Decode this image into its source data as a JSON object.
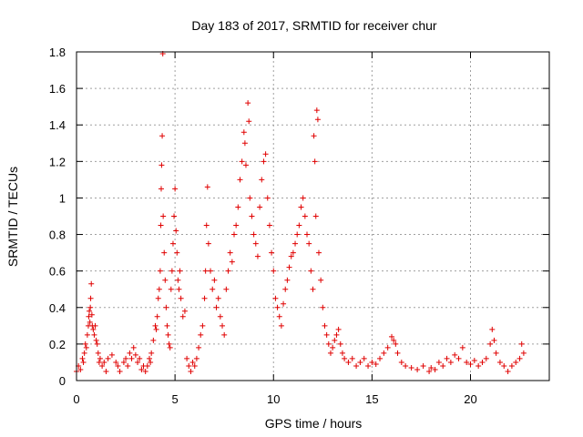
{
  "chart_data": {
    "type": "scatter",
    "title": "Day 183 of 2017, SRMTID for receiver chur",
    "xlabel": "GPS time / hours",
    "ylabel": "SRMTID / TECUs",
    "xlim": [
      0,
      24
    ],
    "ylim": [
      0,
      1.8
    ],
    "xticks": [
      0,
      5,
      10,
      15,
      20
    ],
    "xtick_labels": [
      "0",
      "5",
      "10",
      "15",
      "20"
    ],
    "yticks": [
      0,
      0.2,
      0.4,
      0.6,
      0.8,
      1.0,
      1.2,
      1.4,
      1.6,
      1.8
    ],
    "ytick_labels": [
      "0",
      "0.2",
      "0.4",
      "0.6",
      "0.8",
      "1",
      "1.2",
      "1.4",
      "1.6",
      "1.8"
    ],
    "grid": true,
    "marker": "+",
    "color": "#e00000",
    "series": [
      {
        "name": "SRMTID",
        "points": [
          [
            0.0,
            0.05
          ],
          [
            0.1,
            0.08
          ],
          [
            0.2,
            0.06
          ],
          [
            0.3,
            0.12
          ],
          [
            0.35,
            0.1
          ],
          [
            0.4,
            0.15
          ],
          [
            0.45,
            0.2
          ],
          [
            0.5,
            0.18
          ],
          [
            0.55,
            0.25
          ],
          [
            0.6,
            0.3
          ],
          [
            0.62,
            0.35
          ],
          [
            0.65,
            0.38
          ],
          [
            0.68,
            0.32
          ],
          [
            0.7,
            0.4
          ],
          [
            0.72,
            0.45
          ],
          [
            0.75,
            0.53
          ],
          [
            0.78,
            0.36
          ],
          [
            0.8,
            0.3
          ],
          [
            0.85,
            0.28
          ],
          [
            0.9,
            0.25
          ],
          [
            0.95,
            0.3
          ],
          [
            1.0,
            0.22
          ],
          [
            1.05,
            0.2
          ],
          [
            1.1,
            0.15
          ],
          [
            1.15,
            0.1
          ],
          [
            1.2,
            0.12
          ],
          [
            1.3,
            0.08
          ],
          [
            1.4,
            0.1
          ],
          [
            1.5,
            0.05
          ],
          [
            1.6,
            0.12
          ],
          [
            1.8,
            0.14
          ],
          [
            2.0,
            0.1
          ],
          [
            2.1,
            0.08
          ],
          [
            2.2,
            0.05
          ],
          [
            2.4,
            0.1
          ],
          [
            2.5,
            0.12
          ],
          [
            2.6,
            0.08
          ],
          [
            2.7,
            0.15
          ],
          [
            2.8,
            0.12
          ],
          [
            2.9,
            0.18
          ],
          [
            3.0,
            0.14
          ],
          [
            3.1,
            0.1
          ],
          [
            3.2,
            0.12
          ],
          [
            3.3,
            0.06
          ],
          [
            3.4,
            0.08
          ],
          [
            3.5,
            0.05
          ],
          [
            3.6,
            0.08
          ],
          [
            3.7,
            0.12
          ],
          [
            3.75,
            0.1
          ],
          [
            3.8,
            0.15
          ],
          [
            3.9,
            0.22
          ],
          [
            4.0,
            0.3
          ],
          [
            4.05,
            0.28
          ],
          [
            4.1,
            0.35
          ],
          [
            4.15,
            0.45
          ],
          [
            4.2,
            0.5
          ],
          [
            4.25,
            0.6
          ],
          [
            4.28,
            0.85
          ],
          [
            4.3,
            1.05
          ],
          [
            4.32,
            1.18
          ],
          [
            4.35,
            1.34
          ],
          [
            4.38,
            1.79
          ],
          [
            4.4,
            0.9
          ],
          [
            4.45,
            0.7
          ],
          [
            4.5,
            0.55
          ],
          [
            4.55,
            0.4
          ],
          [
            4.6,
            0.3
          ],
          [
            4.65,
            0.25
          ],
          [
            4.7,
            0.2
          ],
          [
            4.75,
            0.18
          ],
          [
            4.8,
            0.5
          ],
          [
            4.85,
            0.6
          ],
          [
            4.9,
            0.75
          ],
          [
            4.95,
            0.9
          ],
          [
            5.0,
            1.05
          ],
          [
            5.05,
            0.82
          ],
          [
            5.1,
            0.7
          ],
          [
            5.15,
            0.55
          ],
          [
            5.2,
            0.5
          ],
          [
            5.25,
            0.6
          ],
          [
            5.3,
            0.45
          ],
          [
            5.4,
            0.35
          ],
          [
            5.5,
            0.38
          ],
          [
            5.6,
            0.12
          ],
          [
            5.7,
            0.08
          ],
          [
            5.8,
            0.05
          ],
          [
            5.9,
            0.1
          ],
          [
            6.0,
            0.08
          ],
          [
            6.1,
            0.12
          ],
          [
            6.2,
            0.18
          ],
          [
            6.3,
            0.25
          ],
          [
            6.4,
            0.3
          ],
          [
            6.5,
            0.45
          ],
          [
            6.55,
            0.6
          ],
          [
            6.6,
            0.85
          ],
          [
            6.65,
            1.06
          ],
          [
            6.7,
            0.75
          ],
          [
            6.8,
            0.6
          ],
          [
            6.9,
            0.5
          ],
          [
            7.0,
            0.55
          ],
          [
            7.1,
            0.4
          ],
          [
            7.2,
            0.45
          ],
          [
            7.3,
            0.35
          ],
          [
            7.4,
            0.3
          ],
          [
            7.5,
            0.25
          ],
          [
            7.6,
            0.5
          ],
          [
            7.7,
            0.6
          ],
          [
            7.8,
            0.7
          ],
          [
            7.9,
            0.65
          ],
          [
            8.0,
            0.8
          ],
          [
            8.1,
            0.85
          ],
          [
            8.2,
            0.95
          ],
          [
            8.3,
            1.1
          ],
          [
            8.4,
            1.2
          ],
          [
            8.5,
            1.36
          ],
          [
            8.55,
            1.3
          ],
          [
            8.6,
            1.18
          ],
          [
            8.7,
            1.52
          ],
          [
            8.75,
            1.42
          ],
          [
            8.8,
            1.0
          ],
          [
            8.9,
            0.9
          ],
          [
            9.0,
            0.8
          ],
          [
            9.1,
            0.75
          ],
          [
            9.2,
            0.68
          ],
          [
            9.3,
            0.95
          ],
          [
            9.4,
            1.1
          ],
          [
            9.5,
            1.2
          ],
          [
            9.6,
            1.24
          ],
          [
            9.7,
            1.0
          ],
          [
            9.8,
            0.85
          ],
          [
            9.9,
            0.7
          ],
          [
            10.0,
            0.6
          ],
          [
            10.1,
            0.45
          ],
          [
            10.2,
            0.4
          ],
          [
            10.3,
            0.35
          ],
          [
            10.4,
            0.3
          ],
          [
            10.5,
            0.42
          ],
          [
            10.6,
            0.5
          ],
          [
            10.7,
            0.55
          ],
          [
            10.8,
            0.62
          ],
          [
            10.9,
            0.68
          ],
          [
            11.0,
            0.7
          ],
          [
            11.1,
            0.75
          ],
          [
            11.2,
            0.8
          ],
          [
            11.3,
            0.85
          ],
          [
            11.4,
            0.95
          ],
          [
            11.5,
            1.0
          ],
          [
            11.6,
            0.9
          ],
          [
            11.7,
            0.8
          ],
          [
            11.8,
            0.75
          ],
          [
            11.9,
            0.6
          ],
          [
            12.0,
            0.5
          ],
          [
            12.05,
            1.34
          ],
          [
            12.1,
            1.2
          ],
          [
            12.15,
            0.9
          ],
          [
            12.2,
            1.48
          ],
          [
            12.25,
            1.43
          ],
          [
            12.3,
            0.7
          ],
          [
            12.4,
            0.55
          ],
          [
            12.5,
            0.4
          ],
          [
            12.6,
            0.3
          ],
          [
            12.7,
            0.25
          ],
          [
            12.8,
            0.2
          ],
          [
            12.9,
            0.15
          ],
          [
            13.0,
            0.18
          ],
          [
            13.1,
            0.22
          ],
          [
            13.2,
            0.25
          ],
          [
            13.3,
            0.28
          ],
          [
            13.4,
            0.2
          ],
          [
            13.5,
            0.15
          ],
          [
            13.6,
            0.12
          ],
          [
            13.8,
            0.1
          ],
          [
            14.0,
            0.12
          ],
          [
            14.2,
            0.08
          ],
          [
            14.4,
            0.1
          ],
          [
            14.6,
            0.12
          ],
          [
            14.8,
            0.08
          ],
          [
            15.0,
            0.1
          ],
          [
            15.2,
            0.09
          ],
          [
            15.4,
            0.12
          ],
          [
            15.6,
            0.15
          ],
          [
            15.8,
            0.18
          ],
          [
            16.0,
            0.24
          ],
          [
            16.1,
            0.22
          ],
          [
            16.2,
            0.2
          ],
          [
            16.3,
            0.15
          ],
          [
            16.5,
            0.1
          ],
          [
            16.7,
            0.08
          ],
          [
            17.0,
            0.07
          ],
          [
            17.3,
            0.06
          ],
          [
            17.6,
            0.08
          ],
          [
            17.9,
            0.05
          ],
          [
            18.0,
            0.07
          ],
          [
            18.2,
            0.06
          ],
          [
            18.4,
            0.1
          ],
          [
            18.6,
            0.08
          ],
          [
            18.8,
            0.12
          ],
          [
            19.0,
            0.1
          ],
          [
            19.2,
            0.14
          ],
          [
            19.4,
            0.12
          ],
          [
            19.6,
            0.18
          ],
          [
            19.8,
            0.1
          ],
          [
            20.0,
            0.09
          ],
          [
            20.2,
            0.11
          ],
          [
            20.4,
            0.08
          ],
          [
            20.6,
            0.1
          ],
          [
            20.8,
            0.12
          ],
          [
            21.0,
            0.2
          ],
          [
            21.1,
            0.28
          ],
          [
            21.2,
            0.22
          ],
          [
            21.3,
            0.15
          ],
          [
            21.5,
            0.1
          ],
          [
            21.7,
            0.08
          ],
          [
            21.9,
            0.05
          ],
          [
            22.1,
            0.08
          ],
          [
            22.3,
            0.1
          ],
          [
            22.5,
            0.12
          ],
          [
            22.6,
            0.2
          ],
          [
            22.7,
            0.15
          ]
        ]
      }
    ]
  }
}
